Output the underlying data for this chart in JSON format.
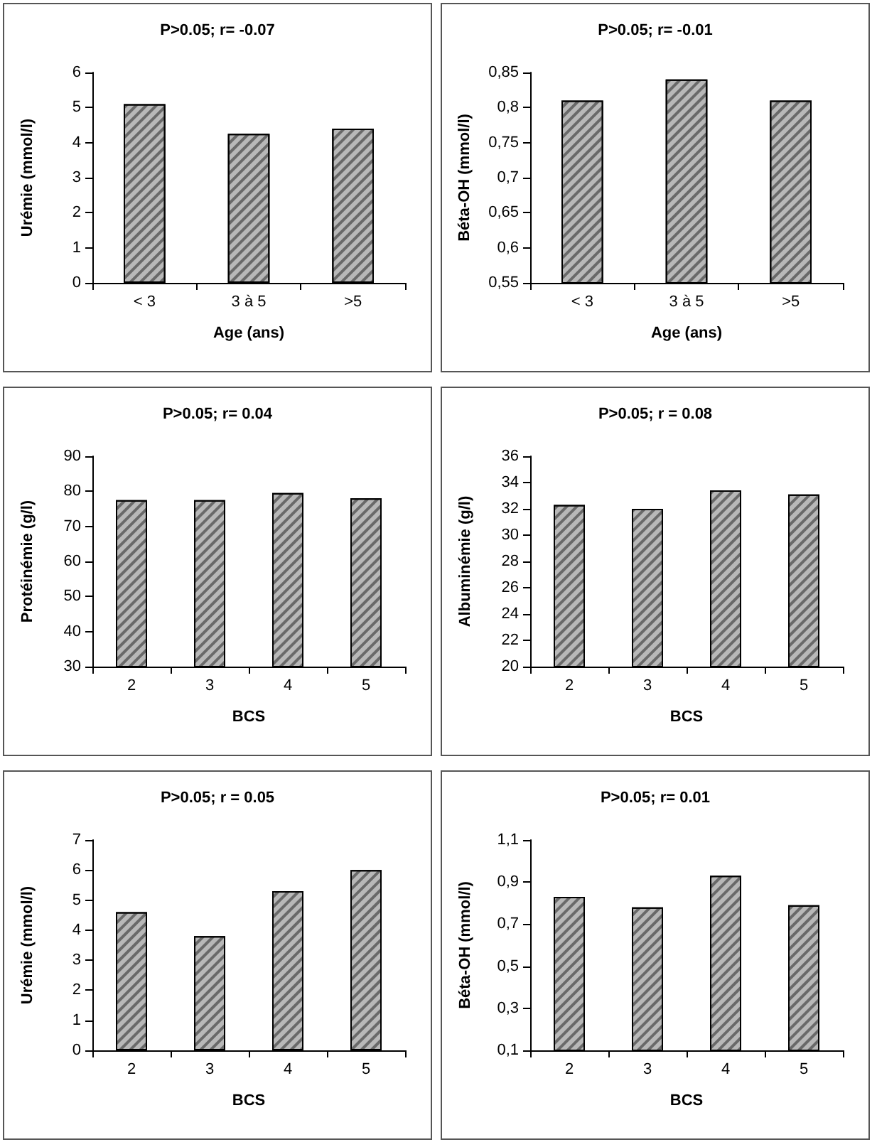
{
  "chart_data": [
    {
      "type": "bar",
      "title": "P>0.05; r= -0.07",
      "xlabel": "Age (ans)",
      "ylabel": "Urémie (mmol/l)",
      "categories": [
        "< 3",
        "3 à 5",
        ">5"
      ],
      "values": [
        5.1,
        4.25,
        4.4
      ],
      "color": "#b8b8b8",
      "ylim": [
        0,
        6
      ],
      "yticks": [
        0,
        1,
        2,
        3,
        4,
        5,
        6
      ],
      "grid": false
    },
    {
      "type": "bar",
      "title": "P>0.05; r= -0.01",
      "xlabel": "Age (ans)",
      "ylabel": "Béta-OH (mmol/l)",
      "categories": [
        "< 3",
        "3 à 5",
        ">5"
      ],
      "values": [
        0.81,
        0.84,
        0.81
      ],
      "color": "#b8b8b8",
      "ylim": [
        0.55,
        0.85
      ],
      "yticks": [
        {
          "value": 0.55,
          "label": "0,55"
        },
        {
          "value": 0.6,
          "label": "0,6"
        },
        {
          "value": 0.65,
          "label": "0,65"
        },
        {
          "value": 0.7,
          "label": "0,7"
        },
        {
          "value": 0.75,
          "label": "0,75"
        },
        {
          "value": 0.8,
          "label": "0,8"
        },
        {
          "value": 0.85,
          "label": "0,85"
        }
      ],
      "grid": false
    },
    {
      "type": "bar",
      "title": "P>0.05; r= 0.04",
      "xlabel": "BCS",
      "ylabel": "Protéinémie (g/l)",
      "categories": [
        "2",
        "3",
        "4",
        "5"
      ],
      "values": [
        77.5,
        77.5,
        79.5,
        78
      ],
      "color": "#b8b8b8",
      "ylim": [
        30,
        90
      ],
      "yticks": [
        30,
        40,
        50,
        60,
        70,
        80,
        90
      ],
      "grid": false
    },
    {
      "type": "bar",
      "title": "P>0.05; r = 0.08",
      "xlabel": "BCS",
      "ylabel": "Albuminémie (g/l)",
      "categories": [
        "2",
        "3",
        "4",
        "5"
      ],
      "values": [
        32.3,
        32.0,
        33.4,
        33.1
      ],
      "color": "#b8b8b8",
      "ylim": [
        20,
        36
      ],
      "yticks": [
        20,
        22,
        24,
        26,
        28,
        30,
        32,
        34,
        36
      ],
      "grid": false
    },
    {
      "type": "bar",
      "title": "P>0.05; r = 0.05",
      "xlabel": "BCS",
      "ylabel": "Urémie (mmol/l)",
      "categories": [
        "2",
        "3",
        "4",
        "5"
      ],
      "values": [
        4.6,
        3.8,
        5.3,
        6.0
      ],
      "color": "#b8b8b8",
      "ylim": [
        0,
        7
      ],
      "yticks": [
        0,
        1,
        2,
        3,
        4,
        5,
        6,
        7
      ],
      "grid": false
    },
    {
      "type": "bar",
      "title": "P>0.05; r= 0.01",
      "xlabel": "BCS",
      "ylabel": "Béta-OH (mmol/l)",
      "categories": [
        "2",
        "3",
        "4",
        "5"
      ],
      "values": [
        0.83,
        0.78,
        0.93,
        0.79
      ],
      "color": "#b8b8b8",
      "ylim": [
        0.1,
        1.1
      ],
      "yticks": [
        {
          "value": 0.1,
          "label": "0,1"
        },
        {
          "value": 0.3,
          "label": "0,3"
        },
        {
          "value": 0.5,
          "label": "0,5"
        },
        {
          "value": 0.7,
          "label": "0,7"
        },
        {
          "value": 0.9,
          "label": "0,9"
        },
        {
          "value": 1.1,
          "label": "1,1"
        }
      ],
      "grid": false
    }
  ]
}
